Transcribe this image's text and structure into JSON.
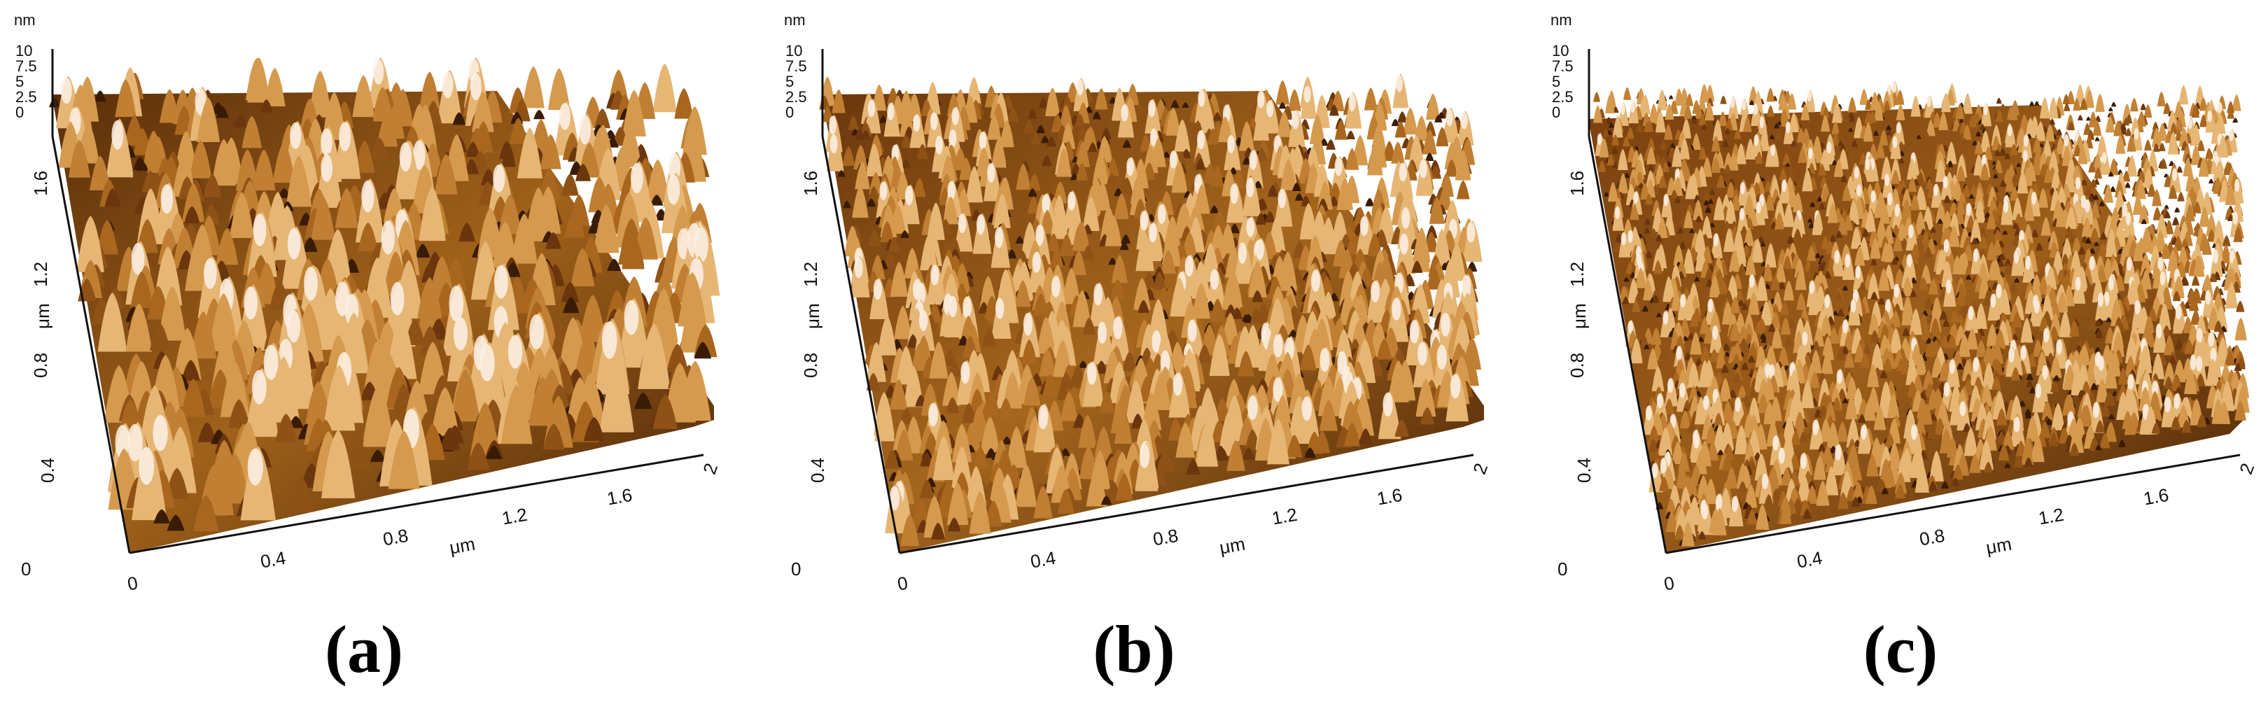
{
  "colors": {
    "surface_dark": "#3a1c06",
    "surface_mid": "#a0621a",
    "surface_light": "#e0a257",
    "surface_highlight": "#fbf1e6",
    "axis": "#111111",
    "background": "#ffffff"
  },
  "axes": {
    "z_unit": "nm",
    "z_ticks": [
      "10",
      "7.5",
      "5",
      "2.5",
      "0"
    ],
    "y_unit": "μm",
    "y_ticks": [
      "0",
      "0.4",
      "0.8",
      "1.2",
      "1.6"
    ],
    "x_unit": "μm",
    "x_ticks": [
      "0",
      "0.4",
      "0.8",
      "1.2",
      "1.6",
      "2"
    ]
  },
  "panels": [
    {
      "label": "(a)",
      "roughness": "coarse"
    },
    {
      "label": "(b)",
      "roughness": "medium"
    },
    {
      "label": "(c)",
      "roughness": "fine"
    }
  ]
}
